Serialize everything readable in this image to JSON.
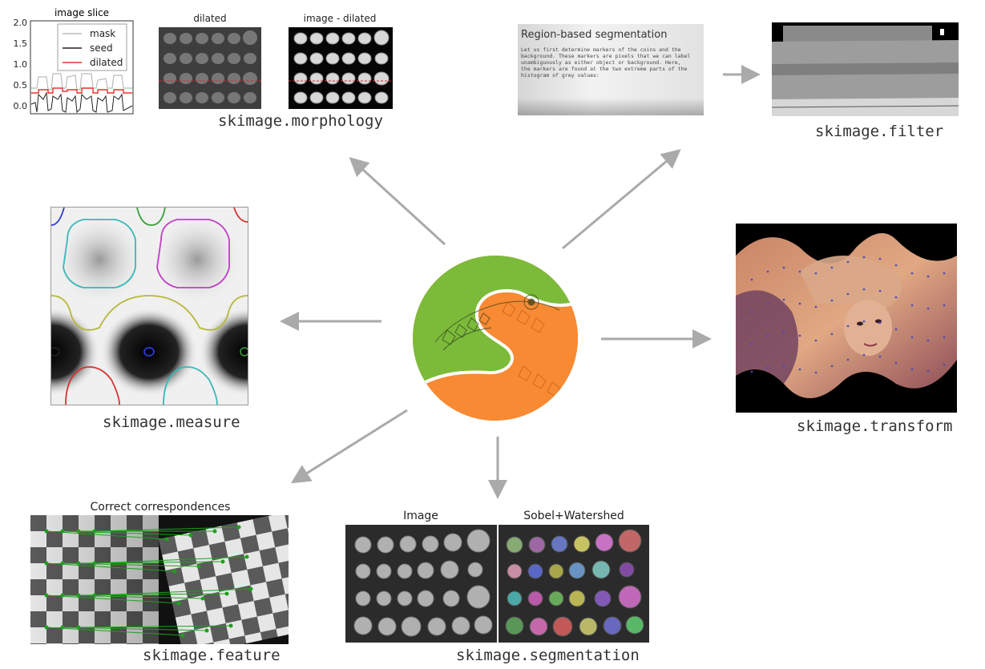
{
  "center": {
    "logo": "skimage-snake-logo"
  },
  "colors": {
    "arrow": "#aaaaaa",
    "logo_green": "#7cbb3a",
    "logo_orange": "#f57f21"
  },
  "modules": {
    "morphology": {
      "label": "skimage.morphology",
      "plot_title": "image slice",
      "legend": [
        "mask",
        "seed",
        "dilated"
      ],
      "yticks": [
        "2.0",
        "1.5",
        "1.0",
        "0.5",
        "0.0"
      ],
      "panel1_title": "dilated",
      "panel2_title": "image - dilated"
    },
    "filter": {
      "label": "skimage.filter",
      "doc_heading": "Region-based segmentation",
      "doc_lines": [
        "Let us first determine markers of the coins and the",
        "background. These markers are pixels that we can label",
        "unambiguously as either object or background. Here,",
        "the markers are found at the two extreme parts of the",
        "histogram of grey values:"
      ]
    },
    "measure": {
      "label": "skimage.measure"
    },
    "transform": {
      "label": "skimage.transform"
    },
    "feature": {
      "label": "skimage.feature",
      "title": "Correct correspondences"
    },
    "segmentation": {
      "label": "skimage.segmentation",
      "left_title": "Image",
      "right_title": "Sobel+Watershed"
    }
  }
}
